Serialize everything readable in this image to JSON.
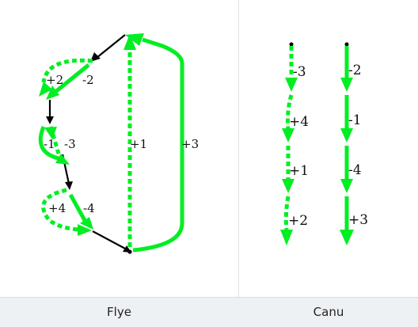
{
  "colors": {
    "edge": "#00ee22",
    "link": "#000000",
    "caption_bg": "#eef1f4"
  },
  "flye": {
    "caption": "Flye",
    "labels": {
      "p2": "+2",
      "m2": "-2",
      "m1": "-1",
      "m3": "-3",
      "p1": "+1",
      "p3": "+3",
      "p4": "+4",
      "m4": "-4"
    }
  },
  "canu": {
    "caption": "Canu",
    "left_path": [
      "-3",
      "+4",
      "+1",
      "+2"
    ],
    "right_path": [
      "-2",
      "-1",
      "-4",
      "+3"
    ]
  }
}
